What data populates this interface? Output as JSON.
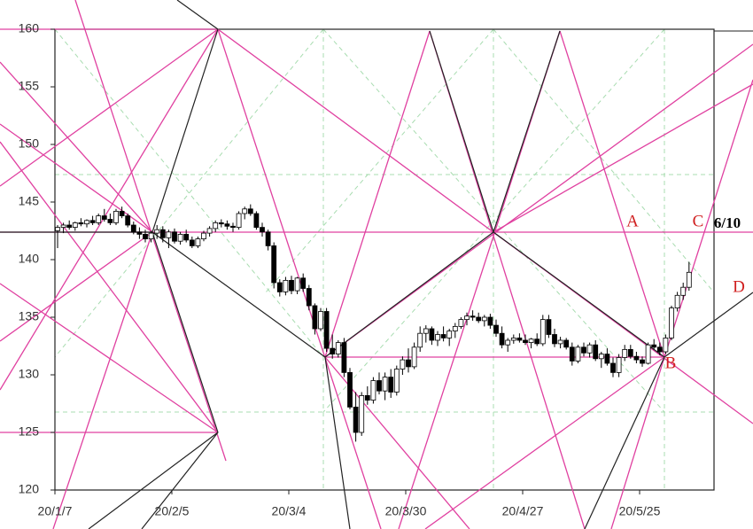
{
  "chart_data": {
    "type": "candlestick",
    "categories": [
      "20/1/7",
      null,
      null,
      null,
      null,
      null,
      null,
      null,
      null,
      null,
      null,
      null,
      null,
      null,
      null,
      null,
      null,
      null,
      null,
      null,
      "20/2/5",
      null,
      null,
      null,
      null,
      null,
      null,
      null,
      null,
      null,
      null,
      null,
      null,
      null,
      null,
      null,
      null,
      null,
      null,
      null,
      "20/3/4",
      null,
      null,
      null,
      null,
      null,
      null,
      null,
      null,
      null,
      null,
      null,
      null,
      null,
      null,
      null,
      null,
      null,
      null,
      null,
      "20/3/30",
      null,
      null,
      null,
      null,
      null,
      null,
      null,
      null,
      null,
      null,
      null,
      null,
      null,
      null,
      null,
      null,
      null,
      null,
      null,
      "20/4/27",
      null,
      null,
      null,
      null,
      null,
      null,
      null,
      null,
      null,
      null,
      null,
      null,
      null,
      null,
      null,
      null,
      null,
      null,
      null,
      "20/5/25",
      null,
      null,
      null,
      null,
      null,
      null,
      null,
      null
    ],
    "ohlc": [
      [
        142.5,
        143,
        141,
        142.8
      ],
      [
        142.8,
        143.2,
        142.3,
        143
      ],
      [
        143,
        143.4,
        142.6,
        142.8
      ],
      [
        142.8,
        143.3,
        142.5,
        143.2
      ],
      [
        143.2,
        143.6,
        142.9,
        143.1
      ],
      [
        143.1,
        143.5,
        142.8,
        143.4
      ],
      [
        143.4,
        143.8,
        143,
        143.2
      ],
      [
        143.2,
        144,
        143,
        143.8
      ],
      [
        143.8,
        144.4,
        143.3,
        143.5
      ],
      [
        143.5,
        144,
        143,
        143.2
      ],
      [
        143.2,
        144.4,
        143,
        144.2
      ],
      [
        144.2,
        144.6,
        143.6,
        143.8
      ],
      [
        143.8,
        144,
        142.8,
        143
      ],
      [
        143,
        143.3,
        142.2,
        142.4
      ],
      [
        142.4,
        142.8,
        141.8,
        142.2
      ],
      [
        142.2,
        142.6,
        141.5,
        141.8
      ],
      [
        141.8,
        142.5,
        141.5,
        142.3
      ],
      [
        142.3,
        143,
        141.8,
        142.6
      ],
      [
        142.6,
        142.9,
        141.5,
        141.9
      ],
      [
        141.9,
        142.6,
        141,
        142.4
      ],
      [
        142.4,
        142.7,
        141.4,
        141.6
      ],
      [
        141.6,
        142.4,
        141.3,
        142.2
      ],
      [
        142.2,
        142.6,
        141.5,
        141.7
      ],
      [
        141.7,
        142,
        141,
        141.2
      ],
      [
        141.2,
        142,
        141,
        141.8
      ],
      [
        141.8,
        142.5,
        141.6,
        142.3
      ],
      [
        142.3,
        142.9,
        142,
        142.7
      ],
      [
        142.7,
        143.4,
        142.4,
        143.2
      ],
      [
        143.2,
        143.5,
        142.8,
        143.1
      ],
      [
        143.1,
        143.4,
        142.6,
        142.9
      ],
      [
        142.9,
        143.2,
        142.4,
        142.8
      ],
      [
        142.8,
        144.2,
        142.6,
        144
      ],
      [
        144,
        144.6,
        143.5,
        144.4
      ],
      [
        144.4,
        144.8,
        143.8,
        144
      ],
      [
        144,
        144.2,
        142.6,
        142.8
      ],
      [
        142.8,
        143.2,
        142,
        142.4
      ],
      [
        142.4,
        142.6,
        140.8,
        141.2
      ],
      [
        141.2,
        141.5,
        137.5,
        138
      ],
      [
        138,
        138.3,
        136.8,
        137.2
      ],
      [
        137.2,
        138.5,
        136.9,
        138.2
      ],
      [
        138.2,
        138.6,
        137,
        137.3
      ],
      [
        137.3,
        138.5,
        137,
        138.4
      ],
      [
        138.4,
        138.8,
        137.2,
        137.5
      ],
      [
        137.5,
        137.8,
        135.6,
        136
      ],
      [
        136,
        136.2,
        133.5,
        134
      ],
      [
        134,
        135.8,
        133.8,
        135.5
      ],
      [
        135.5,
        135.8,
        132,
        132.3
      ],
      [
        132.3,
        133.5,
        131.4,
        131.8
      ],
      [
        131.8,
        133,
        131.5,
        132.8
      ],
      [
        132.8,
        133.2,
        129.8,
        130.2
      ],
      [
        130.2,
        130.6,
        127,
        127.2
      ],
      [
        127.2,
        128.5,
        124.2,
        125
      ],
      [
        125,
        128.5,
        124.7,
        128.2
      ],
      [
        128.2,
        129,
        127.4,
        127.8
      ],
      [
        127.8,
        129.8,
        127.5,
        129.5
      ],
      [
        129.5,
        130.2,
        128.3,
        128.6
      ],
      [
        128.6,
        130.2,
        127.8,
        129.8
      ],
      [
        129.8,
        130.5,
        128,
        128.5
      ],
      [
        128.5,
        130.8,
        128.2,
        130.5
      ],
      [
        130.5,
        131.6,
        130,
        131.3
      ],
      [
        131.3,
        132.3,
        130.2,
        130.7
      ],
      [
        130.7,
        132.8,
        130.5,
        132.4
      ],
      [
        132.4,
        134.2,
        132,
        133.6
      ],
      [
        133.6,
        134.3,
        132.8,
        134
      ],
      [
        134,
        134.2,
        132.6,
        133
      ],
      [
        133,
        133.8,
        132.5,
        133.5
      ],
      [
        133.5,
        134.2,
        132.9,
        133.2
      ],
      [
        133.2,
        134,
        132.5,
        133.8
      ],
      [
        133.8,
        134.5,
        133.2,
        134.2
      ],
      [
        134.2,
        135,
        134,
        134.8
      ],
      [
        134.8,
        135.4,
        134.3,
        135.1
      ],
      [
        135.1,
        135.6,
        134.7,
        135
      ],
      [
        135,
        135.4,
        134.5,
        134.7
      ],
      [
        134.7,
        135.2,
        134.2,
        135
      ],
      [
        135,
        135.3,
        134,
        134.3
      ],
      [
        134.3,
        134.8,
        133.3,
        133.6
      ],
      [
        133.6,
        134.2,
        132.3,
        132.6
      ],
      [
        132.6,
        133.2,
        132,
        133
      ],
      [
        133,
        133.5,
        132.7,
        133.2
      ],
      [
        133.2,
        133.6,
        132.8,
        133
      ],
      [
        133,
        133.5,
        132.6,
        132.8
      ],
      [
        132.8,
        133.2,
        132.3,
        133.1
      ],
      [
        133.1,
        133.6,
        132.5,
        132.7
      ],
      [
        132.7,
        135.2,
        132.5,
        134.8
      ],
      [
        134.8,
        135.2,
        133.2,
        133.5
      ],
      [
        133.5,
        134,
        132.4,
        132.7
      ],
      [
        132.7,
        133.3,
        132.3,
        133
      ],
      [
        133,
        133.2,
        132.2,
        132.4
      ],
      [
        132.4,
        132.8,
        130.8,
        131.2
      ],
      [
        131.2,
        132.6,
        131,
        132.4
      ],
      [
        132.4,
        132.8,
        131.6,
        131.9
      ],
      [
        131.9,
        132.8,
        131.5,
        132.6
      ],
      [
        132.6,
        133,
        131.2,
        131.4
      ],
      [
        131.4,
        132,
        130.6,
        131.8
      ],
      [
        131.8,
        132.3,
        130.8,
        131
      ],
      [
        131,
        131.5,
        129.8,
        130.2
      ],
      [
        130.2,
        131.8,
        129.8,
        131.5
      ],
      [
        131.5,
        132.6,
        131.2,
        132.2
      ],
      [
        132.2,
        132.6,
        131.4,
        131.6
      ],
      [
        131.6,
        132,
        131,
        131.3
      ],
      [
        131.3,
        131.6,
        130.7,
        131
      ],
      [
        131,
        132.8,
        130.9,
        132.6
      ],
      [
        132.6,
        133.1,
        132.2,
        132.4
      ],
      [
        132.4,
        132.8,
        131.7,
        132
      ],
      [
        132,
        133.5,
        131.8,
        133.2
      ],
      [
        133.2,
        136,
        133,
        135.8
      ],
      [
        135.8,
        137.2,
        135.5,
        136.9
      ],
      [
        136.9,
        138,
        136.5,
        137.6
      ],
      [
        137.6,
        139.8,
        137.3,
        138.9
      ]
    ],
    "up_color": "#ffffff",
    "down_color": "#000000",
    "ylim": [
      120,
      160
    ],
    "yticks": [
      120,
      125,
      130,
      135,
      140,
      145,
      150,
      155,
      160
    ],
    "grid": false,
    "annotations": [
      "A",
      "B",
      "C",
      "D",
      "6/10"
    ]
  }
}
